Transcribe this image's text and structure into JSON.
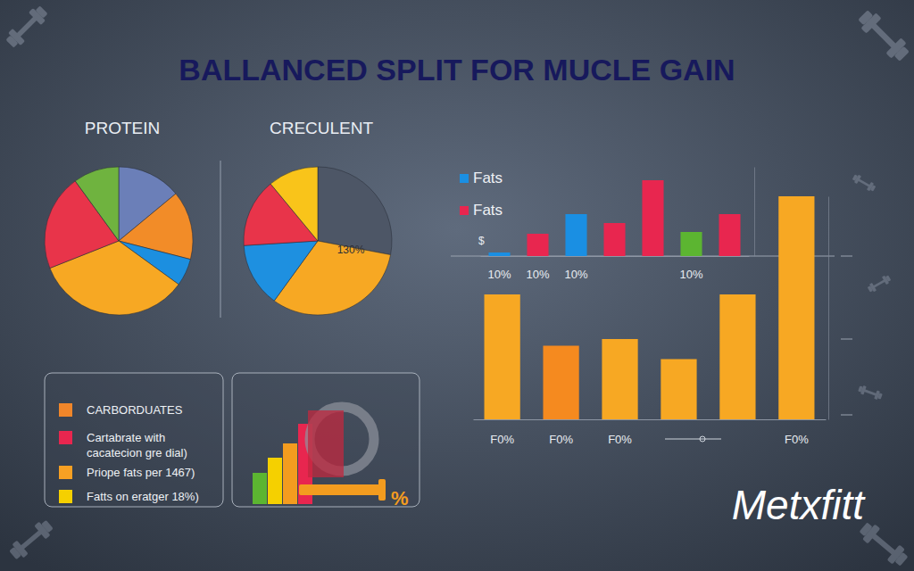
{
  "title": "BALLANCED SPLIT FOR MUCLE GAIN",
  "brand": "Metxfitt",
  "chart_data": [
    {
      "type": "pie",
      "title": "PROTEIN",
      "values": [
        14,
        15,
        6,
        34,
        21,
        10
      ],
      "colors": [
        "#6b7fb8",
        "#f28c28",
        "#1c8fe0",
        "#f7a823",
        "#e8344a",
        "#6fb33f"
      ]
    },
    {
      "type": "pie",
      "title": "CRECULENT",
      "annotation": "130%",
      "values": [
        28,
        32,
        14,
        15,
        11
      ],
      "colors": [
        "#4d5666",
        "#f7a823",
        "#1e90e0",
        "#e8344a",
        "#f9c41a"
      ]
    },
    {
      "type": "bar",
      "stacked": true,
      "legend": "upper left",
      "annotation": "$",
      "tick_labels": "x",
      "categories": [
        "10%",
        "10%",
        "10%",
        null,
        null,
        "10%",
        null
      ],
      "series": [
        {
          "name": "Fats",
          "color": "#1a8fe3",
          "values": [
            4,
            null,
            47,
            null,
            null,
            null,
            null
          ]
        },
        {
          "name": "Fats",
          "color": "#e8264f",
          "values": [
            null,
            25,
            null,
            37,
            85,
            null,
            47
          ]
        },
        {
          "color": "#5cb531",
          "values": [
            null,
            null,
            null,
            null,
            null,
            27,
            null
          ]
        }
      ],
      "ylim": [
        0,
        100
      ]
    },
    {
      "type": "bar",
      "tick_labels": "x",
      "categories": [
        "F0%",
        "F0%",
        "F0%",
        null,
        null,
        "F0%"
      ],
      "values": [
        56,
        33,
        36,
        27,
        56,
        100
      ],
      "colors": [
        "#f7a823",
        "#f58a1f",
        "#f7a823",
        "#f7a823",
        "#f7a823",
        "#f7a823"
      ],
      "ylim": [
        0,
        100
      ]
    }
  ],
  "legend_panel": {
    "items": [
      {
        "color": "#f0862a",
        "lines": [
          "CARBORDUATES"
        ]
      },
      {
        "color": "#e8264f",
        "lines": [
          "Cartabrate with",
          "cacatecion gre dial)"
        ]
      },
      {
        "color": "#f7a023",
        "lines": [
          "Priope fats per 1467)"
        ]
      },
      {
        "color": "#f5d000",
        "lines": [
          "Fatts on eratger 18%)"
        ]
      }
    ]
  },
  "icon_panel": {
    "label": "%"
  }
}
